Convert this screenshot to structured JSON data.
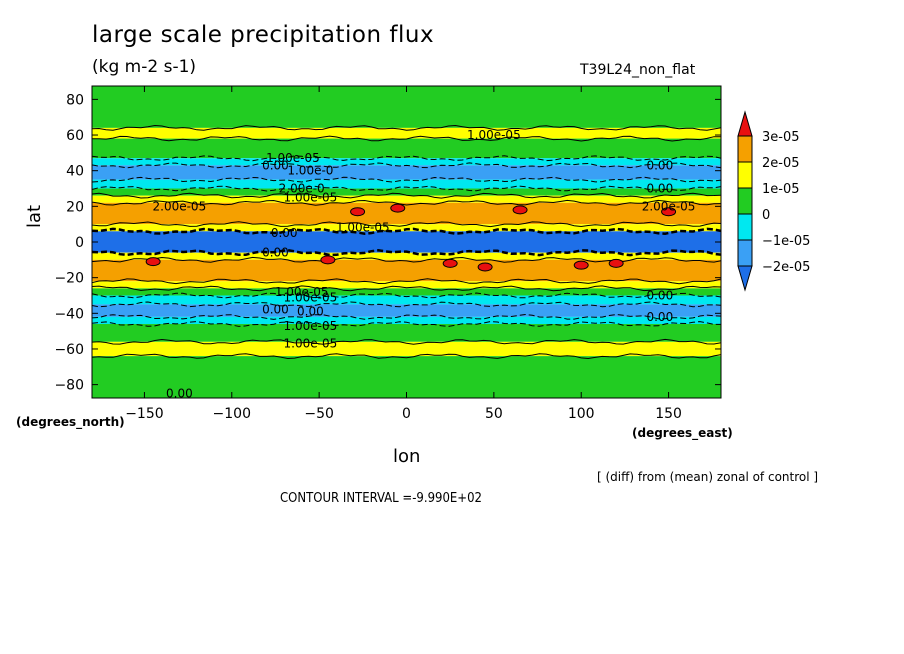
{
  "header": {
    "title": "large scale precipitation flux",
    "units": "(kg m-2 s-1)",
    "run_id": "T39L24_non_flat"
  },
  "footer": {
    "note": "[ (diff) from (mean) zonal of control ]",
    "contour_interval": "CONTOUR INTERVAL =-9.990E+02"
  },
  "colors": {
    "c_lt_m2e5": "#1e6fe8",
    "c_m2_m1": "#3aa0f5",
    "c_m1_0": "#00e8f0",
    "c_0_1": "#22cc22",
    "c_1_2": "#ffff00",
    "c_2_3": "#f5a000",
    "c_gt_3": "#e81010"
  },
  "chart_data": {
    "type": "heatmap",
    "title": "large scale precipitation flux",
    "subtitle": "(kg m-2 s-1)",
    "xlabel": "lon",
    "ylabel": "lat",
    "x_unit": "(degrees_east)",
    "y_unit": "(degrees_north)",
    "xlim": [
      -180,
      180
    ],
    "ylim": [
      -87.5,
      87.5
    ],
    "x_ticks": [
      -150,
      -100,
      -50,
      0,
      50,
      100,
      150
    ],
    "y_ticks": [
      -80,
      -60,
      -40,
      -20,
      0,
      20,
      40,
      60,
      80
    ],
    "grid": false,
    "colorbar": {
      "position": "right",
      "labels": [
        "3e-05",
        "2e-05",
        "1e-05",
        "0",
        "-1e-05",
        "-2e-05"
      ],
      "levels": [
        -2e-05,
        -1e-05,
        0,
        1e-05,
        2e-05,
        3e-05
      ]
    },
    "zonal_bands": [
      {
        "lat_from": 87.5,
        "lat_to": 64,
        "value": 5e-06
      },
      {
        "lat_from": 64,
        "lat_to": 58,
        "value": 1.5e-05
      },
      {
        "lat_from": 58,
        "lat_to": 47,
        "value": 5e-06
      },
      {
        "lat_from": 47,
        "lat_to": 43,
        "value": -5e-06
      },
      {
        "lat_from": 43,
        "lat_to": 35,
        "value": -1.5e-05
      },
      {
        "lat_from": 35,
        "lat_to": 30,
        "value": -5e-06
      },
      {
        "lat_from": 30,
        "lat_to": 26,
        "value": 5e-06
      },
      {
        "lat_from": 26,
        "lat_to": 22,
        "value": 1.5e-05
      },
      {
        "lat_from": 22,
        "lat_to": 10,
        "value": 2.5e-05
      },
      {
        "lat_from": 10,
        "lat_to": 6,
        "value": 1.5e-05
      },
      {
        "lat_from": 6,
        "lat_to": -6,
        "value": -2.5e-05
      },
      {
        "lat_from": -6,
        "lat_to": -10,
        "value": 1.5e-05
      },
      {
        "lat_from": -10,
        "lat_to": -22,
        "value": 2.5e-05
      },
      {
        "lat_from": -22,
        "lat_to": -26,
        "value": 1.5e-05
      },
      {
        "lat_from": -26,
        "lat_to": -30,
        "value": 5e-06
      },
      {
        "lat_from": -30,
        "lat_to": -35,
        "value": -5e-06
      },
      {
        "lat_from": -35,
        "lat_to": -42,
        "value": -1.5e-05
      },
      {
        "lat_from": -42,
        "lat_to": -46,
        "value": -5e-06
      },
      {
        "lat_from": -46,
        "lat_to": -56,
        "value": 5e-06
      },
      {
        "lat_from": -56,
        "lat_to": -64,
        "value": 1.5e-05
      },
      {
        "lat_from": -64,
        "lat_to": -87.5,
        "value": 5e-06
      }
    ],
    "maxima_spots": [
      {
        "lon": -28,
        "lat": 17,
        "value": 3.2e-05
      },
      {
        "lon": -5,
        "lat": 19,
        "value": 3.1e-05
      },
      {
        "lon": 65,
        "lat": 18,
        "value": 3.1e-05
      },
      {
        "lon": 150,
        "lat": 17,
        "value": 3.1e-05
      },
      {
        "lon": -45,
        "lat": -10,
        "value": 3.2e-05
      },
      {
        "lon": 25,
        "lat": -12,
        "value": 3.1e-05
      },
      {
        "lon": 45,
        "lat": -14,
        "value": 3.2e-05
      },
      {
        "lon": 100,
        "lat": -13,
        "value": 3.1e-05
      },
      {
        "lon": 120,
        "lat": -12,
        "value": 3.1e-05
      },
      {
        "lon": -145,
        "lat": -11,
        "value": 3.1e-05
      }
    ],
    "contour_labels": [
      {
        "text": "1.00e-05",
        "lon": 50,
        "lat": 60
      },
      {
        "text": "1.00e-05",
        "lon": -65,
        "lat": 47
      },
      {
        "text": "0.00",
        "lon": -75,
        "lat": 43
      },
      {
        "text": "1.00e-0",
        "lon": -55,
        "lat": 40
      },
      {
        "text": "2.00e-0",
        "lon": -60,
        "lat": 30
      },
      {
        "text": "1.00e-05",
        "lon": -55,
        "lat": 25
      },
      {
        "text": "2.00e-05",
        "lon": -130,
        "lat": 20
      },
      {
        "text": "0.00",
        "lon": 145,
        "lat": 43
      },
      {
        "text": "0.00",
        "lon": 145,
        "lat": 30
      },
      {
        "text": "2.00e-05",
        "lon": 150,
        "lat": 20
      },
      {
        "text": "1.00e-05",
        "lon": -25,
        "lat": 8
      },
      {
        "text": "0.00",
        "lon": -70,
        "lat": 5
      },
      {
        "text": "0.00",
        "lon": -75,
        "lat": -6
      },
      {
        "text": "1.00e-05",
        "lon": -60,
        "lat": -28
      },
      {
        "text": "1.00e-05",
        "lon": -55,
        "lat": -31
      },
      {
        "text": "0.00",
        "lon": -75,
        "lat": -38
      },
      {
        "text": "0.00",
        "lon": -55,
        "lat": -39
      },
      {
        "text": "1.00e-05",
        "lon": -55,
        "lat": -47
      },
      {
        "text": "1.00e-05",
        "lon": -55,
        "lat": -57
      },
      {
        "text": "0.00",
        "lon": 145,
        "lat": -30
      },
      {
        "text": "0.00",
        "lon": 145,
        "lat": -42
      },
      {
        "text": "0.00",
        "lon": -130,
        "lat": -85
      }
    ]
  }
}
